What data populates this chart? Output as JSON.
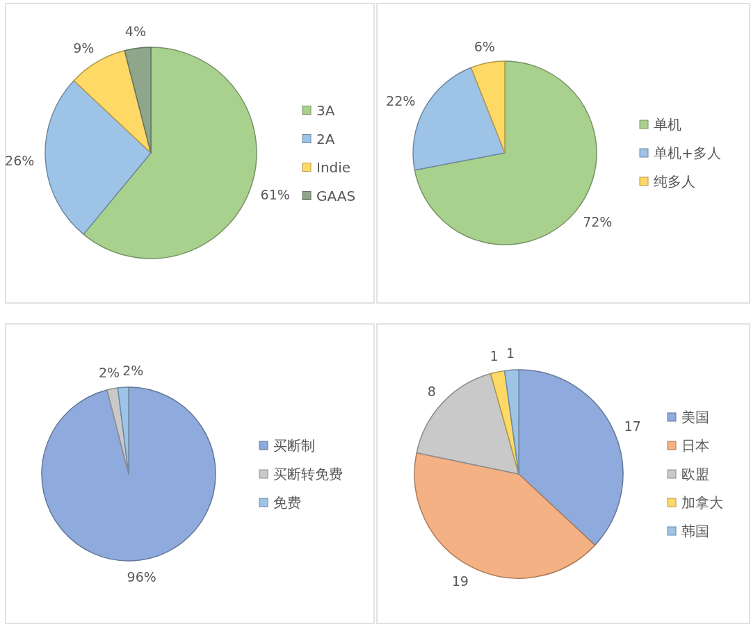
{
  "chart_data": [
    {
      "type": "pie",
      "categories": [
        "3A",
        "2A",
        "Indie",
        "GAAS"
      ],
      "values": [
        61,
        26,
        9,
        4
      ],
      "colors": [
        "#a9d18e",
        "#9dc3e6",
        "#ffd966",
        "#8fa68a"
      ],
      "value_labels": [
        "61%",
        "26%",
        "9%",
        "4%"
      ],
      "legend": "right"
    },
    {
      "type": "pie",
      "categories": [
        "单机",
        "单机+多人",
        "纯多人"
      ],
      "values": [
        72,
        22,
        6
      ],
      "colors": [
        "#a9d18e",
        "#9dc3e6",
        "#ffd966"
      ],
      "value_labels": [
        "72%",
        "22%",
        "6%"
      ],
      "legend": "right"
    },
    {
      "type": "pie",
      "categories": [
        "买断制",
        "买断转免费",
        "免费"
      ],
      "values": [
        96,
        2,
        2
      ],
      "colors": [
        "#8faadc",
        "#c9c9c9",
        "#9dc3e6"
      ],
      "value_labels": [
        "96%",
        "2%",
        "2%"
      ],
      "legend": "right"
    },
    {
      "type": "pie",
      "categories": [
        "美国",
        "日本",
        "欧盟",
        "加拿大",
        "韩国"
      ],
      "values": [
        17,
        19,
        8,
        1,
        1
      ],
      "colors": [
        "#8faadc",
        "#f4b183",
        "#c9c9c9",
        "#ffd966",
        "#9dc3e6"
      ],
      "data_labels": true,
      "legend": "right"
    }
  ]
}
